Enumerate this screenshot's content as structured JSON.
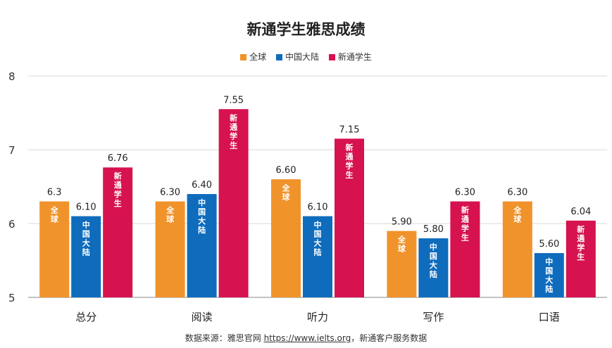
{
  "chart_data": {
    "type": "bar",
    "title": "新通学生雅思成绩",
    "categories": [
      "总分",
      "阅读",
      "听力",
      "写作",
      "口语"
    ],
    "series": [
      {
        "name": "全球",
        "color": "#F0932B",
        "values": [
          6.3,
          6.3,
          6.6,
          5.9,
          6.3
        ],
        "labels": [
          "6.3",
          "6.30",
          "6.60",
          "5.90",
          "6.30"
        ]
      },
      {
        "name": "中国大陆",
        "color": "#0F6CBD",
        "values": [
          6.1,
          6.4,
          6.1,
          5.8,
          5.6
        ],
        "labels": [
          "6.10",
          "6.40",
          "6.10",
          "5.80",
          "5.60"
        ]
      },
      {
        "name": "新通学生",
        "color": "#D6124F",
        "values": [
          6.76,
          7.55,
          7.15,
          6.3,
          6.04
        ],
        "labels": [
          "6.76",
          "7.55",
          "7.15",
          "6.30",
          "6.04"
        ]
      }
    ],
    "ylim": [
      5,
      8
    ],
    "yticks": [
      5,
      6,
      7,
      8
    ],
    "grid": true,
    "legend_position": "top-center",
    "xlabel": "",
    "ylabel": ""
  },
  "source": {
    "prefix": "数据来源：雅思官网 ",
    "link_text": "https://www.ielts.org",
    "suffix": "，新通客户服务数据"
  }
}
